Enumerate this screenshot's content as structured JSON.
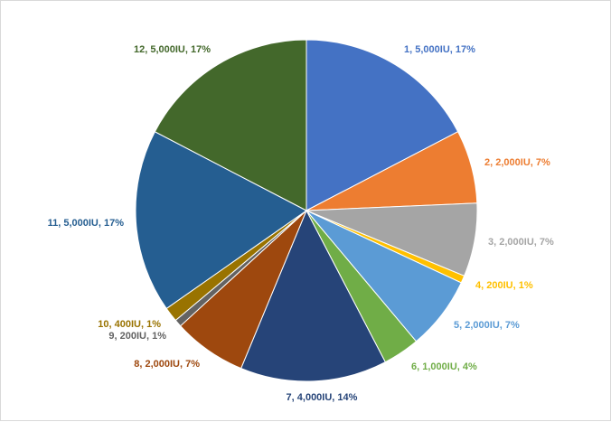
{
  "chart_data": {
    "type": "pie",
    "title": "",
    "slices": [
      {
        "category": "1",
        "value_text": "5,000IU",
        "percent": 17,
        "label": "1, 5,000IU, 17%",
        "color": "#4472C4"
      },
      {
        "category": "2",
        "value_text": "2,000IU",
        "percent": 7,
        "label": "2, 2,000IU, 7%",
        "color": "#ED7D31"
      },
      {
        "category": "3",
        "value_text": "2,000IU",
        "percent": 7,
        "label": "3, 2,000IU, 7%",
        "color": "#A5A5A5"
      },
      {
        "category": "4",
        "value_text": "200IU",
        "percent": 1,
        "label": "4, 200IU, 1%",
        "color": "#FFC000"
      },
      {
        "category": "5",
        "value_text": "2,000IU",
        "percent": 7,
        "label": "5, 2,000IU, 7%",
        "color": "#5B9BD5"
      },
      {
        "category": "6",
        "value_text": "1,000IU",
        "percent": 4,
        "label": "6, 1,000IU, 4%",
        "color": "#70AD47"
      },
      {
        "category": "7",
        "value_text": "4,000IU",
        "percent": 14,
        "label": "7, 4,000IU, 14%",
        "color": "#264478"
      },
      {
        "category": "8",
        "value_text": "2,000IU",
        "percent": 7,
        "label": "8, 2,000IU, 7%",
        "color": "#9E480E"
      },
      {
        "category": "9",
        "value_text": "200IU",
        "percent": 1,
        "label": "9, 200IU, 1%",
        "color": "#636363"
      },
      {
        "category": "10",
        "value_text": "400IU",
        "percent": 1,
        "label": "10, 400IU, 1%",
        "color": "#997300"
      },
      {
        "category": "11",
        "value_text": "5,000IU",
        "percent": 17,
        "label": "11, 5,000IU, 17%",
        "color": "#255E91"
      },
      {
        "category": "12",
        "value_text": "5,000IU",
        "percent": 17,
        "label": "12, 5,000IU, 17%",
        "color": "#43682B"
      }
    ],
    "values": [
      5000,
      2000,
      2000,
      200,
      2000,
      1000,
      4000,
      2000,
      200,
      400,
      5000,
      5000
    ],
    "legend": "none",
    "start_angle": "12 o'clock",
    "direction": "clockwise"
  }
}
